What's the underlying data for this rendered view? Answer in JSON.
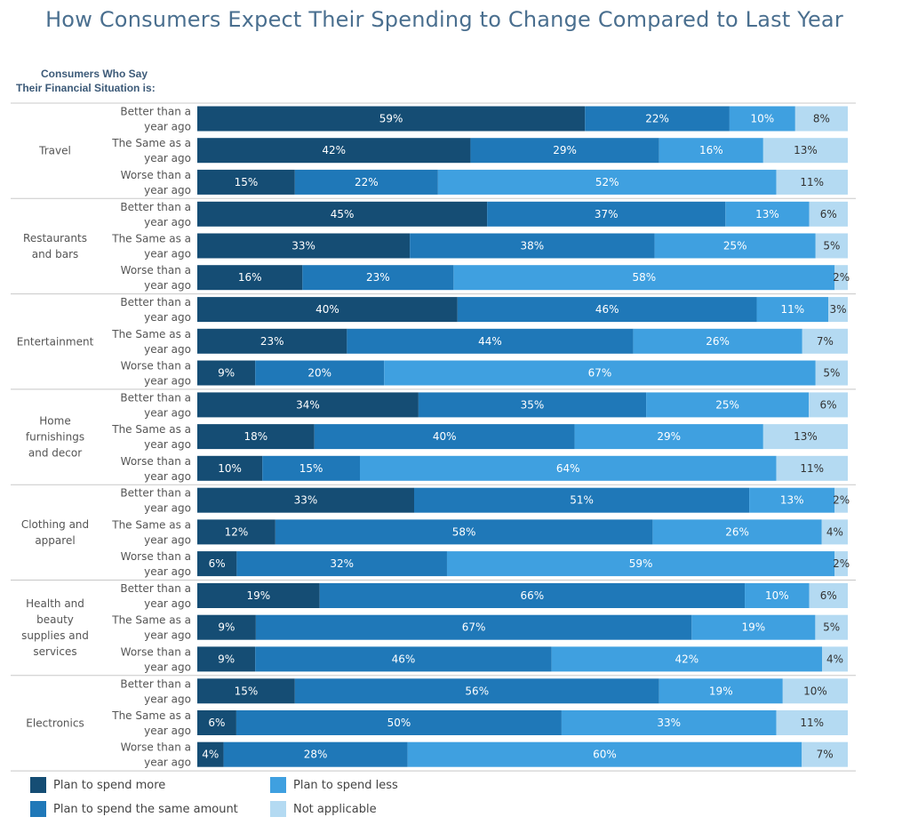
{
  "title": "How Consumers Expect Their Spending to Change Compared to Last Year",
  "header": {
    "line1": "Consumers Who Say",
    "line2": "Their Financial Situation is:"
  },
  "chart_data": {
    "type": "bar",
    "orientation": "horizontal",
    "stacked": "100%",
    "title": "How Consumers Expect Their Spending to Change Compared to Last Year",
    "series": [
      {
        "name": "Plan to spend more",
        "color": "#154d74"
      },
      {
        "name": "Plan to spend the same amount",
        "color": "#1f78b8"
      },
      {
        "name": "Plan to spend less",
        "color": "#3fa0e0"
      },
      {
        "name": "Not applicable",
        "color": "#b4daf2"
      }
    ],
    "row_labels": [
      [
        "Better than a",
        "year ago"
      ],
      [
        "The Same as a",
        "year ago"
      ],
      [
        "Worse than a",
        "year ago"
      ]
    ],
    "groups": [
      {
        "category": [
          "Travel"
        ],
        "rows": [
          [
            59,
            22,
            10,
            8
          ],
          [
            42,
            29,
            16,
            13
          ],
          [
            15,
            22,
            52,
            11
          ]
        ]
      },
      {
        "category": [
          "Restaurants",
          "and bars"
        ],
        "rows": [
          [
            45,
            37,
            13,
            6
          ],
          [
            33,
            38,
            25,
            5
          ],
          [
            16,
            23,
            58,
            2
          ]
        ]
      },
      {
        "category": [
          "Entertainment"
        ],
        "rows": [
          [
            40,
            46,
            11,
            3
          ],
          [
            23,
            44,
            26,
            7
          ],
          [
            9,
            20,
            67,
            5
          ]
        ]
      },
      {
        "category": [
          "Home",
          "furnishings",
          "and decor"
        ],
        "rows": [
          [
            34,
            35,
            25,
            6
          ],
          [
            18,
            40,
            29,
            13
          ],
          [
            10,
            15,
            64,
            11
          ]
        ]
      },
      {
        "category": [
          "Clothing and",
          "apparel"
        ],
        "rows": [
          [
            33,
            51,
            13,
            2
          ],
          [
            12,
            58,
            26,
            4
          ],
          [
            6,
            32,
            59,
            2
          ]
        ]
      },
      {
        "category": [
          "Health and",
          "beauty",
          "supplies and",
          "services"
        ],
        "rows": [
          [
            19,
            66,
            10,
            6
          ],
          [
            9,
            67,
            19,
            5
          ],
          [
            9,
            46,
            42,
            4
          ]
        ]
      },
      {
        "category": [
          "Electronics"
        ],
        "rows": [
          [
            15,
            56,
            19,
            10
          ],
          [
            6,
            50,
            33,
            11
          ],
          [
            4,
            28,
            60,
            7
          ]
        ]
      }
    ],
    "legend": "bottom-left"
  }
}
